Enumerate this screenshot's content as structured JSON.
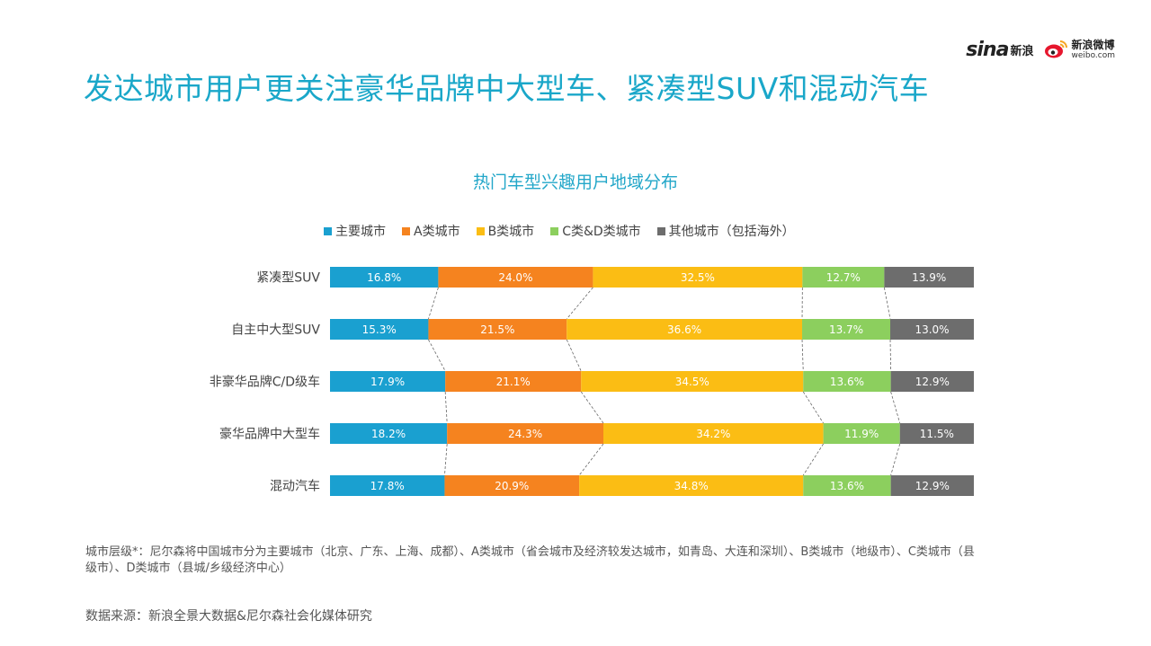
{
  "header": {
    "title": "发达城市用户更关注豪华品牌中大型车、紧凑型SUV和混动汽车",
    "logos": {
      "sina_word": "sina",
      "sina_cn": "新浪",
      "weibo_cn": "新浪微博",
      "weibo_url": "weibo.com"
    }
  },
  "chart_data": {
    "type": "bar",
    "orientation": "horizontal",
    "stacked": true,
    "normalized_percent": true,
    "title": "热门车型兴趣用户地域分布",
    "legend_position": "top",
    "categories": [
      "紧凑型SUV",
      "自主中大型SUV",
      "非豪华品牌C/D级车",
      "豪华品牌中大型车",
      "混动汽车"
    ],
    "series": [
      {
        "name": "主要城市",
        "color": "#1aa0d0",
        "values": [
          16.8,
          15.3,
          17.9,
          18.2,
          17.8
        ],
        "labels": [
          "16.8%",
          "15.3%",
          "17.9%",
          "18.2%",
          "17.8%"
        ]
      },
      {
        "name": "A类城市",
        "color": "#f5831f",
        "values": [
          24.0,
          21.5,
          21.1,
          24.3,
          20.9
        ],
        "labels": [
          "24.0%",
          "21.5%",
          "21.1%",
          "24.3%",
          "20.9%"
        ]
      },
      {
        "name": "B类城市",
        "color": "#fbbd14",
        "values": [
          32.5,
          36.6,
          34.5,
          34.2,
          34.8
        ],
        "labels": [
          "32.5%",
          "36.6%",
          "34.5%",
          "34.2%",
          "34.8%"
        ]
      },
      {
        "name": "C类&D类城市",
        "color": "#8ccf5e",
        "values": [
          12.7,
          13.7,
          13.6,
          11.9,
          13.6
        ],
        "labels": [
          "12.7%",
          "13.7%",
          "13.6%",
          "11.9%",
          "13.6%"
        ]
      },
      {
        "name": "其他城市（包括海外）",
        "color": "#6d6d6d",
        "values": [
          13.9,
          13.0,
          12.9,
          11.5,
          12.9
        ],
        "labels": [
          "13.9%",
          "13.0%",
          "12.9%",
          "11.5%",
          "12.9%"
        ]
      }
    ],
    "series_lines": "dashed connectors between stacked segment boundaries"
  },
  "footnote": "城市层级*：尼尔森将中国城市分为主要城市（北京、广东、上海、成都）、A类城市（省会城市及经济较发达城市，如青岛、大连和深圳）、B类城市（地级市）、C类城市（县级市）、D类城市（县城/乡级经济中心）",
  "source": "数据来源：新浪全景大数据&尼尔森社会化媒体研究"
}
